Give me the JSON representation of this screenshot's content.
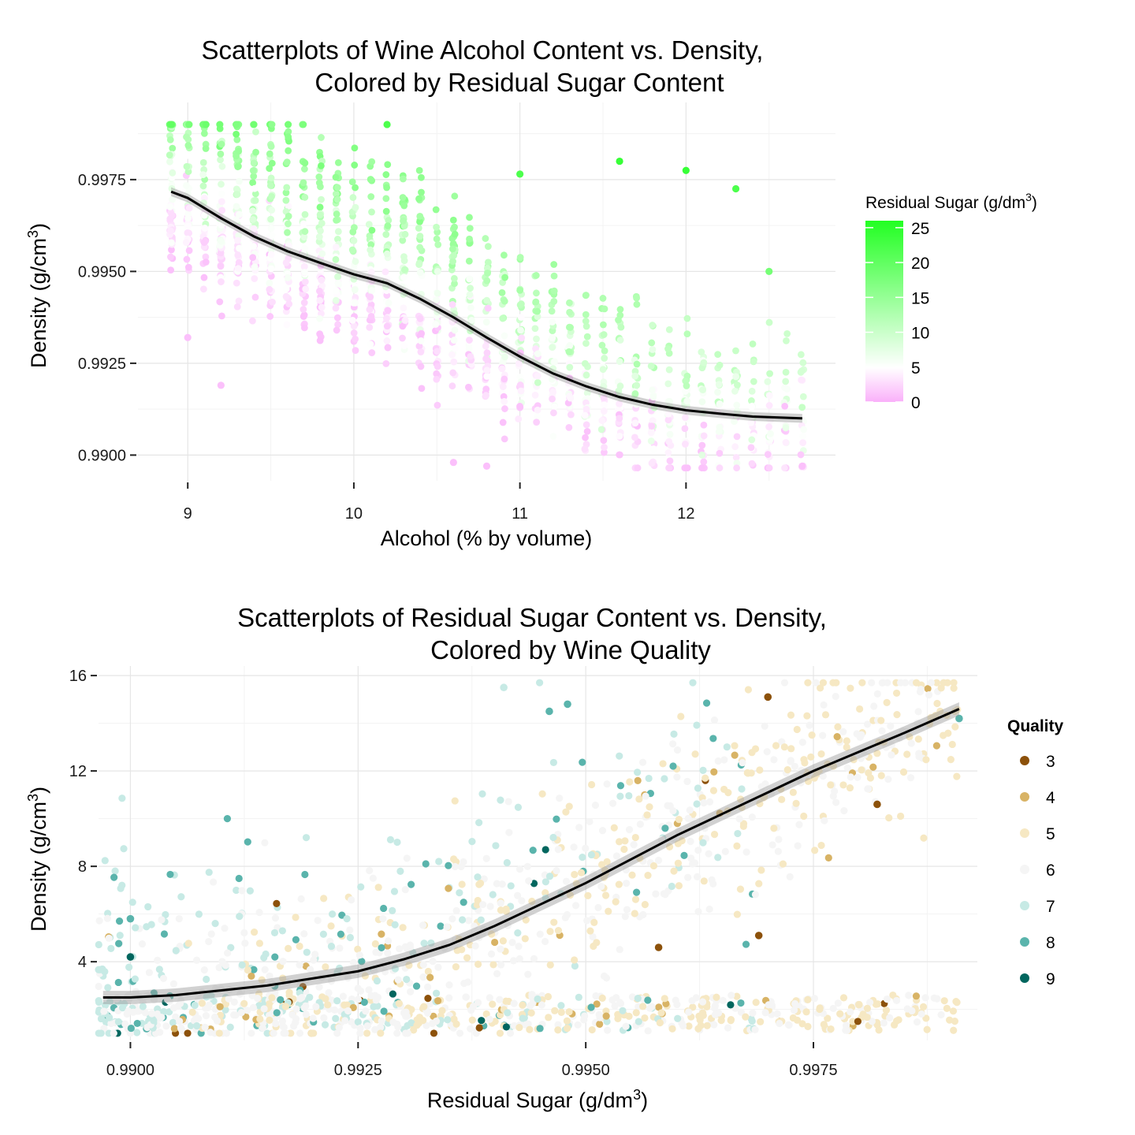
{
  "chart_data": [
    {
      "type": "scatter",
      "title_lines": [
        "Scatterplots of Wine Alcohol Content vs. Density,",
        "Colored by Residual Sugar Content"
      ],
      "xlabel": "Alcohol (% by volume)",
      "ylabel_main": "Density (g/cm",
      "ylabel_sup": "3",
      "ylabel_close": ")",
      "xlim": [
        8.7,
        12.9
      ],
      "ylim": [
        0.9893,
        0.9996
      ],
      "xticks": [
        9,
        10,
        11,
        12
      ],
      "xtick_labels": [
        "9",
        "10",
        "11",
        "12"
      ],
      "yticks": [
        0.99,
        0.9925,
        0.995,
        0.9975
      ],
      "ytick_labels": [
        "0.9900",
        "0.9925",
        "0.9950",
        "0.9975"
      ],
      "grid": true,
      "legend": {
        "title_main": "Residual Sugar (g/dm",
        "title_sup": "3",
        "title_close": ")",
        "placement": "right",
        "type": "colorbar",
        "range": [
          0,
          26
        ],
        "tick_values": [
          0,
          5,
          10,
          15,
          20,
          25
        ],
        "tick_labels": [
          "0",
          "5",
          "10",
          "15",
          "20",
          "25"
        ],
        "colors": [
          "#fab0fa",
          "#ffffff",
          "#22ff22"
        ]
      },
      "smooth": {
        "color": "#000000",
        "x": [
          8.9,
          9.0,
          9.2,
          9.4,
          9.6,
          9.8,
          10.0,
          10.2,
          10.4,
          10.6,
          10.8,
          11.0,
          11.2,
          11.4,
          11.6,
          11.8,
          12.0,
          12.2,
          12.4,
          12.7
        ],
        "y": [
          0.99717,
          0.997,
          0.99645,
          0.99595,
          0.99555,
          0.99523,
          0.99492,
          0.99468,
          0.99425,
          0.99375,
          0.9932,
          0.99268,
          0.99222,
          0.99187,
          0.99158,
          0.99137,
          0.99122,
          0.99113,
          0.99105,
          0.991
        ]
      },
      "sample_points": [
        {
          "x": 8.9,
          "y": 0.999,
          "sugar": 20
        },
        {
          "x": 9.0,
          "y": 0.9932,
          "sugar": 1
        },
        {
          "x": 9.2,
          "y": 0.9919,
          "sugar": 1
        },
        {
          "x": 10.2,
          "y": 0.999,
          "sugar": 22
        },
        {
          "x": 11.0,
          "y": 0.99765,
          "sugar": 22
        },
        {
          "x": 11.6,
          "y": 0.998,
          "sugar": 24
        },
        {
          "x": 12.0,
          "y": 0.99775,
          "sugar": 24
        },
        {
          "x": 12.3,
          "y": 0.99725,
          "sugar": 22
        },
        {
          "x": 12.5,
          "y": 0.995,
          "sugar": 18
        },
        {
          "x": 10.6,
          "y": 0.9898,
          "sugar": 1
        },
        {
          "x": 10.8,
          "y": 0.9897,
          "sugar": 1
        },
        {
          "x": 12.7,
          "y": 0.9897,
          "sugar": 1
        }
      ]
    },
    {
      "type": "scatter",
      "title_lines": [
        "Scatterplots of Residual Sugar Content vs. Density,",
        "Colored by Wine Quality"
      ],
      "xlabel_main": "Residual Sugar (g/dm",
      "xlabel_sup": "3",
      "xlabel_close": ")",
      "ylabel_main": "Density (g/cm",
      "ylabel_sup": "3",
      "ylabel_close": ")",
      "xlim": [
        0.98965,
        0.9993
      ],
      "ylim": [
        0.7,
        16.4
      ],
      "xticks": [
        0.99,
        0.9925,
        0.995,
        0.9975
      ],
      "xtick_labels": [
        "0.9900",
        "0.9925",
        "0.9950",
        "0.9975"
      ],
      "yticks": [
        4,
        8,
        12,
        16
      ],
      "ytick_labels": [
        "4",
        "8",
        "12",
        "16"
      ],
      "grid": true,
      "legend": {
        "title": "Quality",
        "placement": "right",
        "type": "discrete",
        "entries": [
          {
            "label": "3",
            "color": "#8c510a"
          },
          {
            "label": "4",
            "color": "#d8b365"
          },
          {
            "label": "5",
            "color": "#f6e8c3"
          },
          {
            "label": "6",
            "color": "#f5f5f5"
          },
          {
            "label": "7",
            "color": "#c7eae5"
          },
          {
            "label": "8",
            "color": "#5ab4ac"
          },
          {
            "label": "9",
            "color": "#01665e"
          }
        ]
      },
      "smooth": {
        "color": "#000000",
        "x": [
          0.9897,
          0.99,
          0.9905,
          0.991,
          0.9915,
          0.992,
          0.9925,
          0.993,
          0.9935,
          0.994,
          0.9945,
          0.995,
          0.9955,
          0.996,
          0.9965,
          0.997,
          0.9975,
          0.998,
          0.9985,
          0.9991
        ],
        "y": [
          2.5,
          2.5,
          2.6,
          2.8,
          3.0,
          3.3,
          3.6,
          4.1,
          4.7,
          5.5,
          6.4,
          7.3,
          8.3,
          9.3,
          10.2,
          11.1,
          12.0,
          12.8,
          13.6,
          14.6
        ]
      },
      "sample_points": [
        {
          "x": 0.99,
          "y": 5.8,
          "q": "8"
        },
        {
          "x": 0.99,
          "y": 4.2,
          "q": "9"
        },
        {
          "x": 0.9941,
          "y": 15.5,
          "q": "7"
        },
        {
          "x": 0.9946,
          "y": 14.5,
          "q": "8"
        },
        {
          "x": 0.9948,
          "y": 14.8,
          "q": "8"
        },
        {
          "x": 0.997,
          "y": 15.1,
          "q": "3"
        },
        {
          "x": 0.9982,
          "y": 10.6,
          "q": "3"
        },
        {
          "x": 0.9958,
          "y": 4.6,
          "q": "3"
        },
        {
          "x": 0.9969,
          "y": 5.1,
          "q": "3"
        },
        {
          "x": 0.998,
          "y": 2.2,
          "q": "5"
        },
        {
          "x": 0.9991,
          "y": 14.2,
          "q": "8"
        }
      ]
    }
  ]
}
